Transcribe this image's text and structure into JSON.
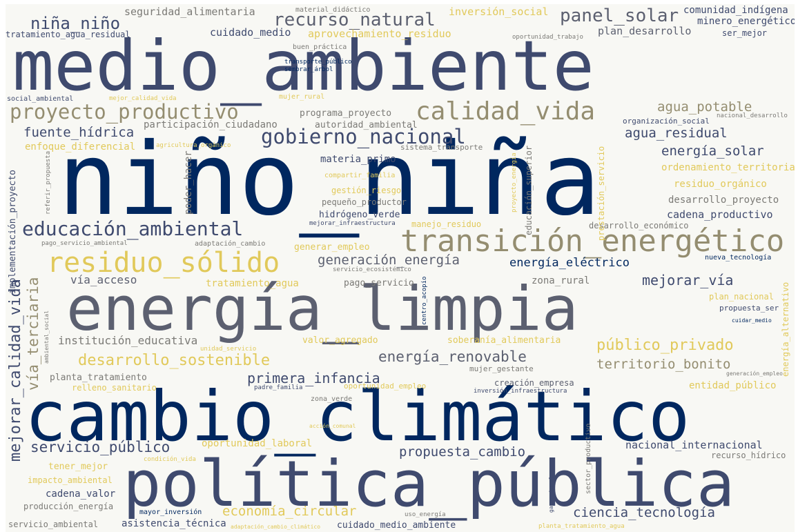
{
  "palette": {
    "navy": "#00275f",
    "slate": "#3f4a6e",
    "gray": "#5c6070",
    "khaki": "#948d70",
    "yellow": "#e1c95a",
    "mid_gray": "#7b7a76",
    "background": "#f8f8f4"
  },
  "words": [
    "medio_ambiente",
    "niño_niña",
    "cambio_climático",
    "política_pública",
    "energía_limpia",
    "transición_energético",
    "residuo_sólido",
    "calidad_vida",
    "proyecto_productivo",
    "educación_ambiental",
    "gobierno_nacional",
    "recurso_natural",
    "panel_solar",
    "niña_niño",
    "seguridad_alimentaria",
    "material_didáctico",
    "inversión_social",
    "comunidad_indígena",
    "minero_energético",
    "tratamiento_agua_residual",
    "cuidado_medio",
    "aprovechamiento_residuo",
    "plan_desarrollo",
    "ser_mejor",
    "buen_práctica",
    "oportunidad_trabajo",
    "transporte_público",
    "sembrar_árbol",
    "social_ambiental",
    "mejor_calidad_vida",
    "mujer_rural",
    "agua_potable",
    "organización_social",
    "nacional_desarrollo",
    "fuente_hídrica",
    "participación_ciudadano",
    "programa_proyecto",
    "autoridad_ambiental",
    "agua_residual",
    "enfoque_diferencial",
    "agricultura_orgánico",
    "sistema_transporte",
    "energía_solar",
    "materia_primo",
    "ordenamiento_territorial",
    "compartir_familia",
    "residuo_orgánico",
    "gestión_riesgo",
    "desarrollo_proyecto",
    "pequeño_productor",
    "hidrógeno_verde",
    "cadena_productivo",
    "mejorar_infraestructura",
    "manejo_residuo",
    "desarrollo_económico",
    "pago_servicio_ambiental",
    "adaptación_cambio",
    "generar_empleo",
    "generación_energía",
    "energía_eléctrico",
    "nueva_tecnología",
    "servicio_ecosistémico",
    "vía_acceso",
    "tratamiento_agua",
    "pago_servicio",
    "zona_rural",
    "mejorar_vía",
    "plan_nacional",
    "propuesta_ser",
    "cuidar_medio",
    "institución_educativa",
    "unidad_servicio",
    "valor_agregado",
    "soberanía_alimentaria",
    "público_privado",
    "desarrollo_sostenible",
    "energía_renovable",
    "territorio_bonito",
    "mujer_gestante",
    "generación_empleo",
    "planta_tratamiento",
    "primera_infancia",
    "relleno_sanitario",
    "padre_familia",
    "oportunidad_empleo",
    "creación_empresa",
    "inversión_infraestructura",
    "entidad_público",
    "zona_verde",
    "acción_comunal",
    "servicio_público",
    "oportunidad_laboral",
    "nacional_internacional",
    "propuesta_cambio",
    "tener_mejor",
    "condición_vida",
    "recurso_hídrico",
    "impacto_ambiental",
    "cadena_valor",
    "producción_energía",
    "economía_circular",
    "mayor_inversión",
    "uso_energía",
    "ciencia_tecnología",
    "servicio_ambiental",
    "asistencia_técnica",
    "adaptación_cambio_climático",
    "cuidado_medio_ambiente",
    "planta_tratamiento_agua",
    "implementación_proyecto",
    "referir_propuesta",
    "poder_hacer",
    "proyecto_energía",
    "educación_superior",
    "prestación_servicio",
    "vía_terciaria",
    "mejorar_calidad_vida",
    "ambiental_social",
    "centro_acopio",
    "sector_productivo",
    "energía_alternativo",
    "gas_natural"
  ]
}
